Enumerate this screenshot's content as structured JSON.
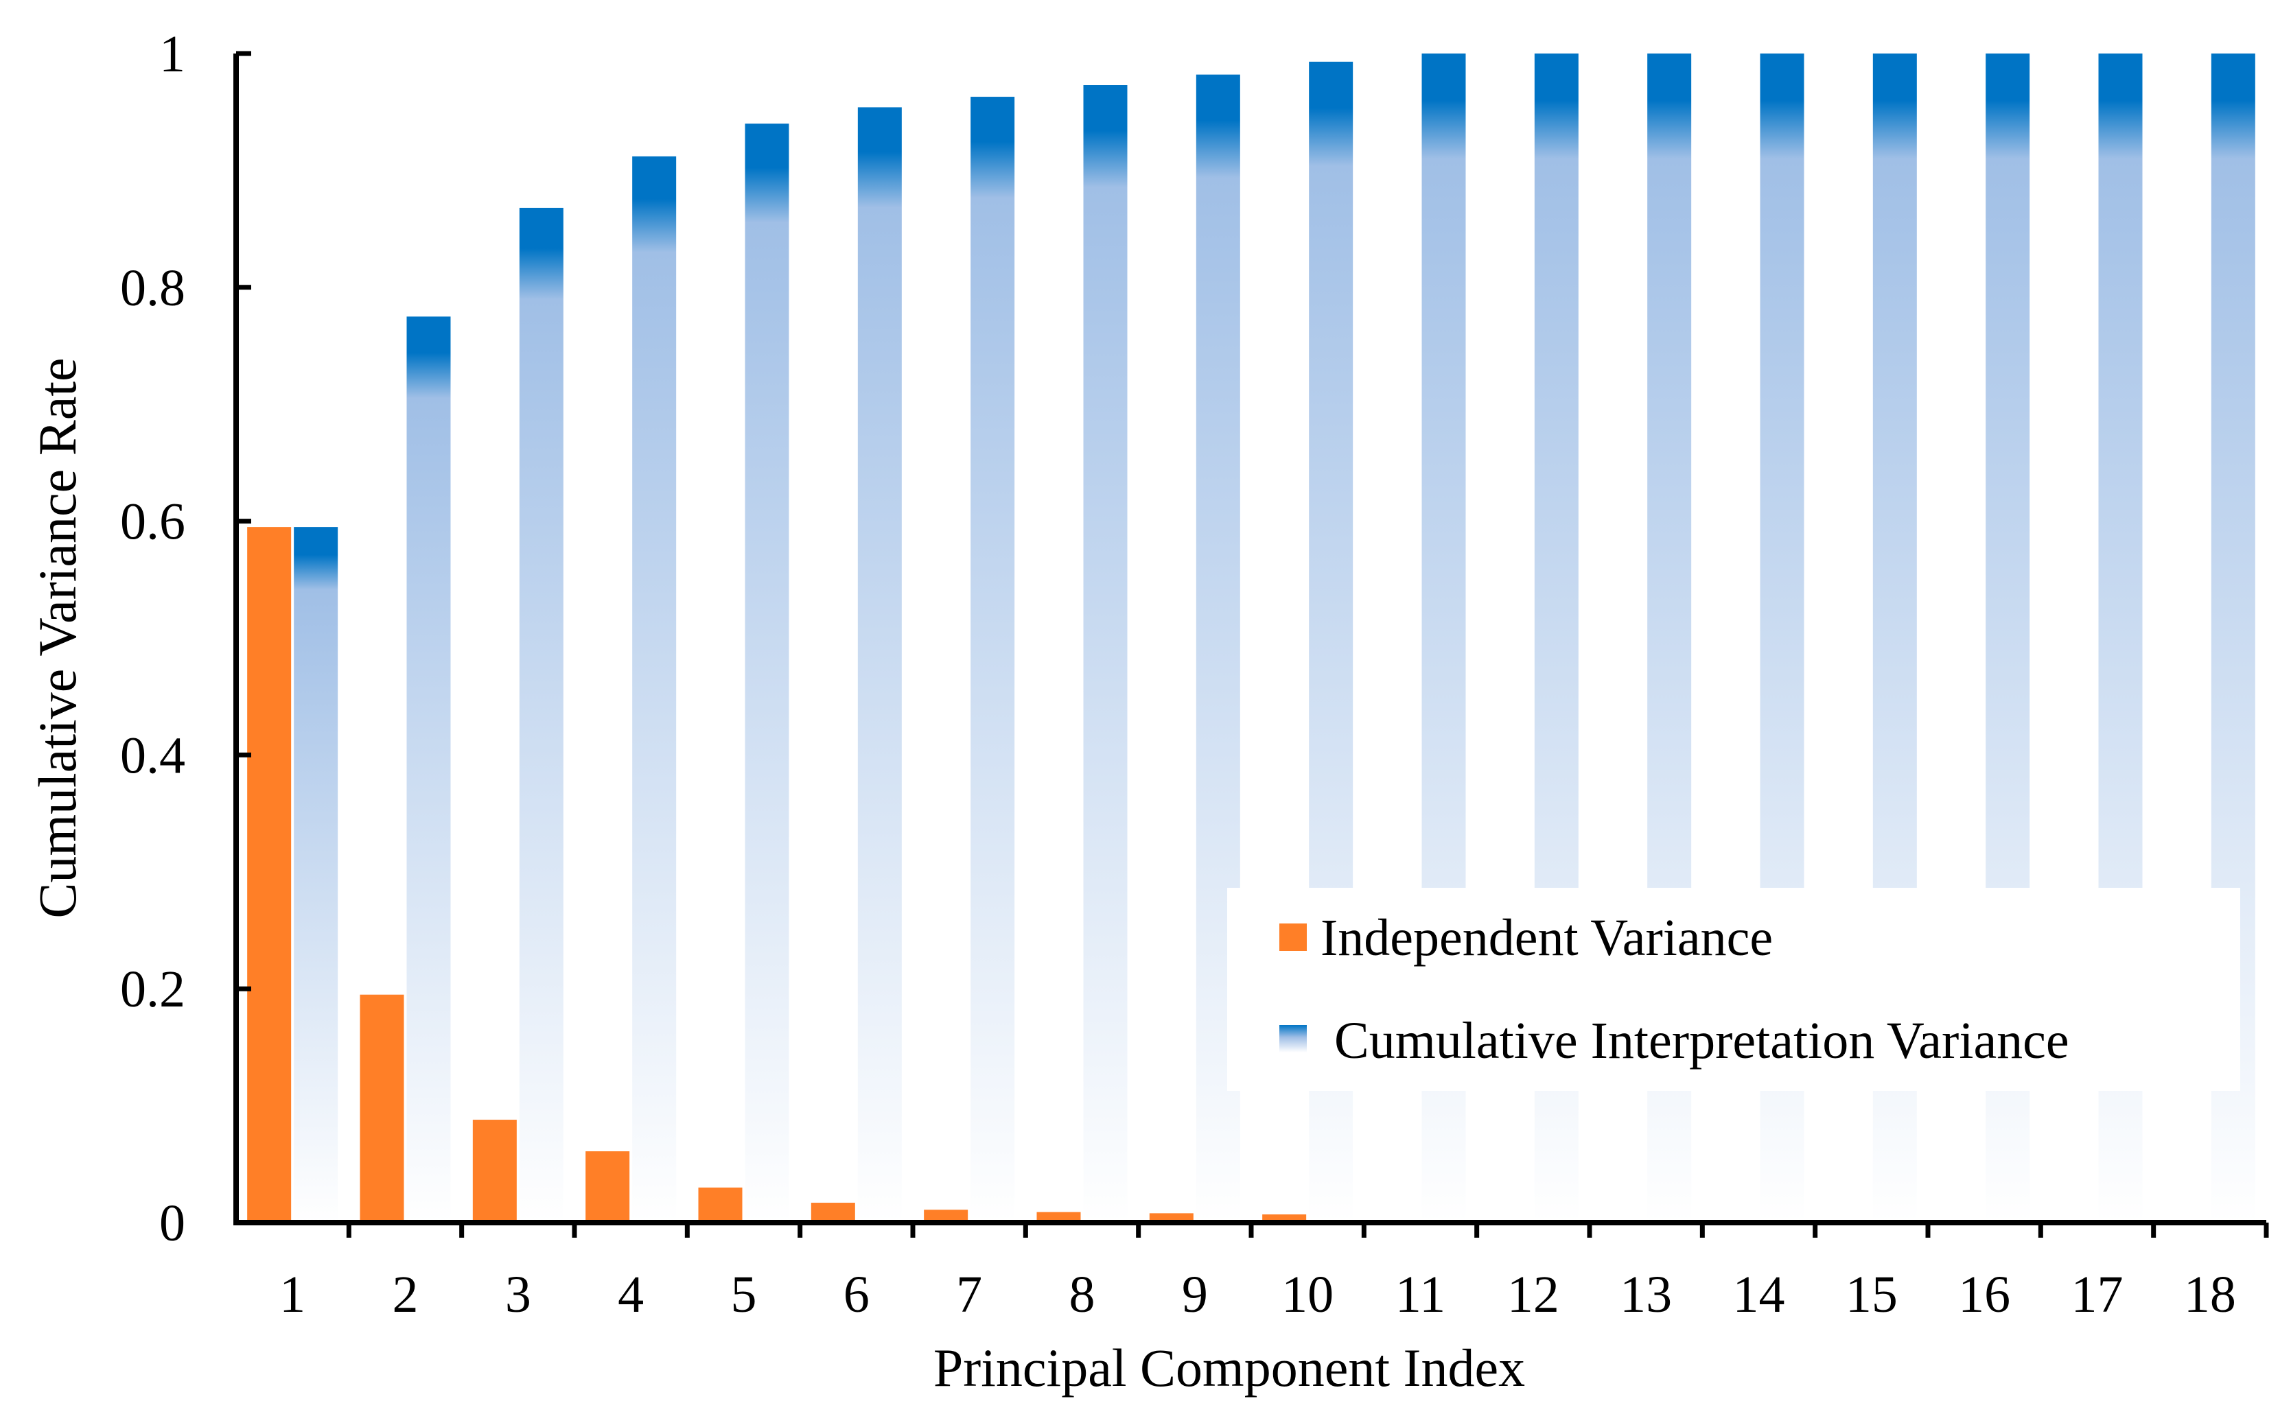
{
  "chart_data": {
    "type": "bar",
    "title": "",
    "xlabel": "Principal Component Index",
    "ylabel": "Cumulative Variance Rate",
    "categories": [
      "1",
      "2",
      "3",
      "4",
      "5",
      "6",
      "7",
      "8",
      "9",
      "10",
      "11",
      "12",
      "13",
      "14",
      "15",
      "16",
      "17",
      "18"
    ],
    "ylim": [
      0,
      1
    ],
    "yticks": [
      0,
      0.2,
      0.4,
      0.6,
      0.8,
      1
    ],
    "ytick_labels": [
      "0",
      "0.2",
      "0.4",
      "0.6",
      "0.8",
      "1"
    ],
    "grid": false,
    "legend_position": "lower-right",
    "series": [
      {
        "name": "Independent Variance",
        "color": "#FF7F27",
        "values": [
          0.595,
          0.195,
          0.088,
          0.061,
          0.03,
          0.017,
          0.011,
          0.009,
          0.008,
          0.007,
          0,
          0,
          0,
          0,
          0,
          0,
          0,
          0
        ]
      },
      {
        "name": "Cumulative Interpretation Variance",
        "color": "#0077C8",
        "gradient_colors": [
          "#0074C5",
          "#A0BFE6",
          "#FFFFFF"
        ],
        "values": [
          0.595,
          0.775,
          0.868,
          0.912,
          0.94,
          0.954,
          0.963,
          0.973,
          0.982,
          0.993,
          1,
          1,
          1,
          1,
          1,
          1,
          1,
          1
        ]
      }
    ]
  }
}
